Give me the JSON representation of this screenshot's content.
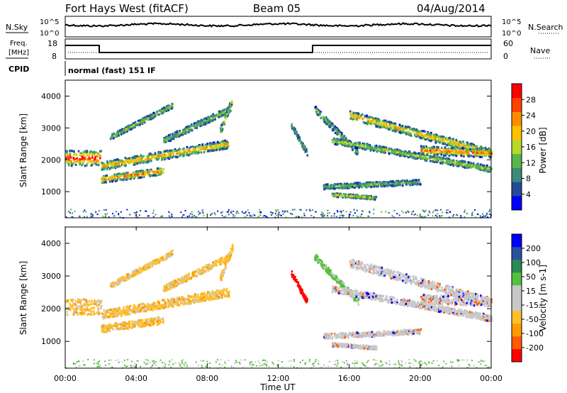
{
  "header": {
    "site": "Fort Hays West (fitACF)",
    "beam": "Beam 05",
    "date": "04/Aug/2014"
  },
  "strips": {
    "nsky_label": "N.Sky",
    "nsky_ticks": [
      "10^5",
      "10^0"
    ],
    "nsearch_label": "N.Search",
    "nsearch_ticks": [
      "10^5",
      "10^0"
    ],
    "freq_label_1": "Freq.",
    "freq_label_2": "[MHz]",
    "freq_ticks": [
      "18",
      "8"
    ],
    "nave_label": "Nave",
    "nave_ticks": [
      "60",
      "0"
    ],
    "cpid_label": "CPID",
    "cpid_text": "normal (fast) 151 IF"
  },
  "colors": {
    "power_scale": [
      "#0000ff",
      "#234b96",
      "#3c8a7a",
      "#58b64a",
      "#b8d82a",
      "#ffc000",
      "#ff8c00",
      "#ff4000",
      "#ff0000"
    ],
    "velocity_scale": [
      "#ff0000",
      "#ff5a00",
      "#ff9a00",
      "#ffc02a",
      "#c8c8c8",
      "#c8c8c8",
      "#55c040",
      "#2a8a55",
      "#2a50a0",
      "#0000ff"
    ]
  },
  "chart_data": [
    {
      "type": "heatmap",
      "name": "power",
      "ylabel": "Slant Range [km]",
      "xlim_hours": [
        0,
        24
      ],
      "yticks": [
        1000,
        2000,
        3000,
        4000
      ],
      "colorbar_label": "Power [dB]",
      "colorbar_ticks": [
        "28",
        "24",
        "20",
        "16",
        "12",
        "8",
        "4"
      ]
    },
    {
      "type": "heatmap",
      "name": "velocity",
      "ylabel": "Slant Range [km]",
      "xlim_hours": [
        0,
        24
      ],
      "yticks": [
        1000,
        2000,
        3000,
        4000
      ],
      "colorbar_label": "Velocity [m s-1]",
      "colorbar_ticks": [
        "200",
        "100",
        "50",
        "15",
        "-15",
        "-50",
        "-100",
        "-200"
      ]
    }
  ],
  "xaxis": {
    "ticks": [
      "00:00",
      "04:00",
      "08:00",
      "12:00",
      "16:00",
      "20:00",
      "00:00"
    ],
    "label": "Time UT"
  }
}
